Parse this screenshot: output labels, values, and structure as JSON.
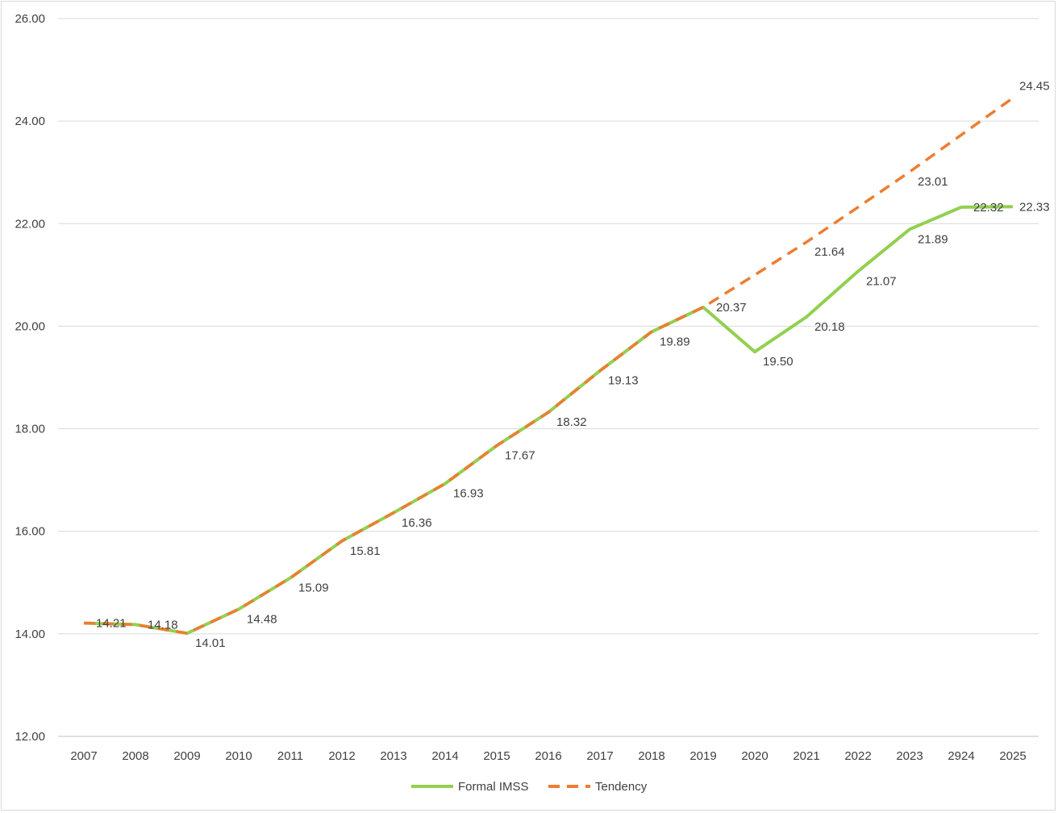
{
  "chart_data": {
    "type": "line",
    "categories": [
      "2007",
      "2008",
      "2009",
      "2010",
      "2011",
      "2012",
      "2013",
      "2014",
      "2015",
      "2016",
      "2017",
      "2018",
      "2019",
      "2020",
      "2021",
      "2022",
      "2023",
      "2924",
      "2025"
    ],
    "series": [
      {
        "name": "Formal IMSS",
        "color": "#92d050",
        "style": "solid",
        "values": [
          14.21,
          14.18,
          14.01,
          14.48,
          15.09,
          15.81,
          16.36,
          16.93,
          17.67,
          18.32,
          19.13,
          19.89,
          20.37,
          19.5,
          20.18,
          21.07,
          21.89,
          22.32,
          22.33
        ]
      },
      {
        "name": "Tendency",
        "color": "#ed7d31",
        "style": "dashed",
        "values": [
          14.21,
          14.18,
          14.01,
          14.48,
          15.09,
          15.81,
          16.36,
          16.93,
          17.67,
          18.32,
          19.13,
          19.89,
          20.37,
          21.0,
          21.64,
          22.32,
          23.01,
          23.73,
          24.45
        ]
      }
    ],
    "data_labels": [
      {
        "text": "14.21",
        "series": 0,
        "index": 0
      },
      {
        "text": "14.18",
        "series": 0,
        "index": 1
      },
      {
        "text": "14.01",
        "series": 0,
        "index": 2
      },
      {
        "text": "14.48",
        "series": 0,
        "index": 3
      },
      {
        "text": "15.09",
        "series": 0,
        "index": 4
      },
      {
        "text": "15.81",
        "series": 0,
        "index": 5
      },
      {
        "text": "16.36",
        "series": 0,
        "index": 6
      },
      {
        "text": "16.93",
        "series": 0,
        "index": 7
      },
      {
        "text": "17.67",
        "series": 0,
        "index": 8
      },
      {
        "text": "18.32",
        "series": 0,
        "index": 9
      },
      {
        "text": "19.13",
        "series": 0,
        "index": 10
      },
      {
        "text": "19.89",
        "series": 0,
        "index": 11
      },
      {
        "text": "20.37",
        "series": 0,
        "index": 12
      },
      {
        "text": "19.50",
        "series": 0,
        "index": 13
      },
      {
        "text": "20.18",
        "series": 0,
        "index": 14
      },
      {
        "text": "21.07",
        "series": 0,
        "index": 15
      },
      {
        "text": "21.89",
        "series": 0,
        "index": 16
      },
      {
        "text": "22.32",
        "series": 0,
        "index": 17
      },
      {
        "text": "22.33",
        "series": 0,
        "index": 18
      },
      {
        "text": "21.64",
        "series": 1,
        "index": 14
      },
      {
        "text": "23.01",
        "series": 1,
        "index": 16
      },
      {
        "text": "24.45",
        "series": 1,
        "index": 18
      }
    ],
    "yticks": [
      "12.00",
      "14.00",
      "16.00",
      "18.00",
      "20.00",
      "22.00",
      "24.00",
      "26.00"
    ],
    "ylim": [
      12,
      26
    ],
    "grid": true,
    "legend_position": "bottom"
  }
}
